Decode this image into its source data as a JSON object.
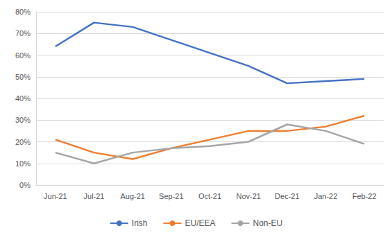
{
  "chart_data": {
    "type": "line",
    "categories": [
      "Jun-21",
      "Jul-21",
      "Aug-21",
      "Sep-21",
      "Oct-21",
      "Nov-21",
      "Dec-21",
      "Jan-22",
      "Feb-22"
    ],
    "series": [
      {
        "name": "Irish",
        "color": "#4472c4",
        "values": [
          64,
          75,
          73,
          67,
          61,
          55,
          47,
          48,
          49
        ]
      },
      {
        "name": "EU/EEA",
        "color": "#ed7d31",
        "values": [
          21,
          15,
          12,
          17,
          21,
          25,
          25,
          27,
          32
        ]
      },
      {
        "name": "Non-EU",
        "color": "#a5a5a5",
        "values": [
          15,
          10,
          15,
          17,
          18,
          20,
          28,
          25,
          19
        ]
      }
    ],
    "ylim": [
      0,
      80
    ],
    "yticks": [
      {
        "value": 0,
        "label": "0%"
      },
      {
        "value": 10,
        "label": "10%"
      },
      {
        "value": 20,
        "label": "20%"
      },
      {
        "value": 30,
        "label": "30%"
      },
      {
        "value": 40,
        "label": "40%"
      },
      {
        "value": 50,
        "label": "50%"
      },
      {
        "value": 60,
        "label": "60%"
      },
      {
        "value": 70,
        "label": "70%"
      },
      {
        "value": 80,
        "label": "80%"
      }
    ],
    "grid": true,
    "legend": "bottom"
  }
}
